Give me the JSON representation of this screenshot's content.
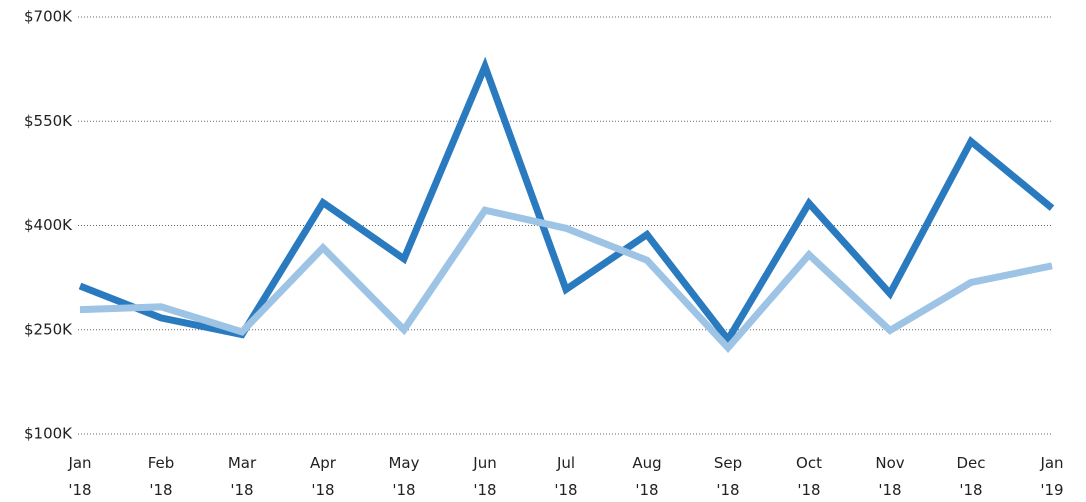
{
  "chart_data": {
    "type": "line",
    "categories": [
      "Jan\n'18",
      "Feb\n'18",
      "Mar\n'18",
      "Apr\n'18",
      "May\n'18",
      "Jun\n'18",
      "Jul\n'18",
      "Aug\n'18",
      "Sep\n'18",
      "Oct\n'18",
      "Nov\n'18",
      "Dec\n'18",
      "Jan\n'19"
    ],
    "series": [
      {
        "color": "#2a7abf",
        "values": [
          313000,
          267000,
          243000,
          433000,
          352000,
          629000,
          308000,
          387000,
          236000,
          432000,
          302000,
          521000,
          425000
        ]
      },
      {
        "color": "#9dc3e5",
        "values": [
          279000,
          283000,
          247000,
          368000,
          250000,
          422000,
          396000,
          350000,
          224000,
          358000,
          249000,
          318000,
          342000
        ]
      }
    ],
    "ylim": [
      100000,
      700000
    ],
    "yticks": [
      {
        "value": 100000,
        "label": "$100K"
      },
      {
        "value": 250000,
        "label": "$250K"
      },
      {
        "value": 400000,
        "label": "$400K"
      },
      {
        "value": 550000,
        "label": "$550K"
      },
      {
        "value": 700000,
        "label": "$700K"
      }
    ],
    "grid": true
  }
}
